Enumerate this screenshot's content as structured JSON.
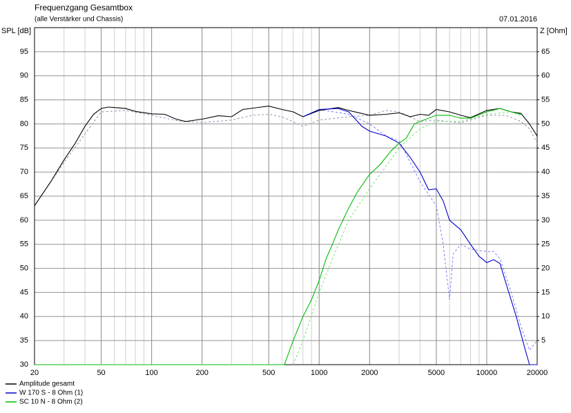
{
  "chart_data": {
    "type": "line",
    "title": "Frequenzgang Gesamtbox",
    "subtitle": "(alle Verstärker und Chassis)",
    "date": "07.01.2016",
    "ylabel": "SPL [dB]",
    "y2label": "Z [Ohm]",
    "xscale": "log",
    "xlim": [
      20,
      20000
    ],
    "xticks": [
      20,
      50,
      100,
      200,
      500,
      1000,
      2000,
      5000,
      10000,
      20000
    ],
    "ylim": [
      30,
      100
    ],
    "yticks": [
      30,
      35,
      40,
      45,
      50,
      55,
      60,
      65,
      70,
      75,
      80,
      85,
      90,
      95
    ],
    "y2lim": [
      0,
      70
    ],
    "y2ticks": [
      5,
      10,
      15,
      20,
      25,
      30,
      35,
      40,
      45,
      50,
      55,
      60,
      65
    ],
    "grid": true,
    "legend": "bottom-left",
    "series": [
      {
        "color": "#9a9ab8",
        "dash": true,
        "x": [
          20,
          30,
          50,
          70,
          100,
          150,
          200,
          300,
          400,
          500,
          600,
          800,
          1000,
          1500,
          2000,
          2500,
          3000,
          4000,
          5000,
          7000,
          10000,
          13000,
          16000,
          18000,
          20000
        ],
        "values": [
          63,
          72,
          82.5,
          82.8,
          81.8,
          80.5,
          80.3,
          80.8,
          81.8,
          82,
          81.5,
          79.5,
          80.8,
          81.5,
          81.8,
          82.8,
          82.5,
          80.5,
          80.8,
          80.2,
          81.8,
          81.8,
          80.5,
          79,
          76
        ]
      },
      {
        "color": "#8080ff",
        "dash": true,
        "x": [
          1000,
          1500,
          2000,
          2500,
          3000,
          3500,
          4000,
          5000,
          5500,
          6000,
          6300,
          7000,
          8000,
          10000,
          11000,
          12000,
          14000,
          16000,
          18000,
          20000
        ],
        "values": [
          83,
          82,
          80,
          77.5,
          76.5,
          72,
          68,
          63,
          55,
          43.5,
          53,
          55,
          54,
          53.5,
          53.5,
          52,
          45,
          38,
          33,
          35
        ]
      },
      {
        "color": "#80e080",
        "dash": true,
        "x": [
          700,
          800,
          1000,
          1200,
          1500,
          2000,
          3000,
          4000,
          5000,
          7000,
          10000,
          14000,
          16000
        ],
        "values": [
          30,
          35,
          45,
          52,
          60,
          66.5,
          75,
          79,
          80.5,
          80.5,
          82,
          82.5,
          81.8
        ]
      },
      {
        "name": "Amplitude gesamt",
        "color": "#000000",
        "x": [
          20,
          25,
          30,
          35,
          40,
          45,
          50,
          55,
          60,
          70,
          80,
          100,
          120,
          140,
          160,
          200,
          250,
          300,
          350,
          450,
          500,
          600,
          700,
          800,
          1000,
          1300,
          1500,
          2000,
          2500,
          3000,
          3500,
          4000,
          4500,
          5000,
          6000,
          7000,
          8000,
          10000,
          12000,
          14000,
          16000,
          18000,
          20000
        ],
        "values": [
          63,
          68,
          72.5,
          76,
          79.5,
          82,
          83.2,
          83.5,
          83.4,
          83.2,
          82.6,
          82.1,
          82,
          81,
          80.5,
          81,
          81.7,
          81.5,
          83,
          83.5,
          83.7,
          83,
          82.5,
          81.5,
          82.8,
          83.4,
          82.8,
          81.8,
          82,
          82.3,
          81.5,
          82,
          81.8,
          83,
          82.5,
          81.8,
          81.3,
          82.8,
          83.2,
          82.5,
          82.2,
          80,
          77.5
        ]
      },
      {
        "name": "W 170 S - 8 Ohm (1)",
        "color": "#0000cc",
        "x": [
          800,
          1000,
          1300,
          1500,
          1800,
          2000,
          2500,
          3000,
          3500,
          4000,
          4500,
          5000,
          5500,
          6000,
          7000,
          8000,
          9000,
          10000,
          11000,
          12000,
          13000,
          15000,
          17000,
          18000,
          20000
        ],
        "values": [
          81.5,
          83,
          83.2,
          82.5,
          79.5,
          78.5,
          77.5,
          76,
          73,
          70,
          66.3,
          66.5,
          64,
          60,
          58,
          55,
          52.5,
          51.2,
          51.8,
          51,
          47,
          40,
          33,
          30,
          30
        ]
      },
      {
        "name": "SC 10 N - 8 Ohm (2)",
        "color": "#00bb00",
        "x": [
          20,
          620,
          700,
          800,
          900,
          1000,
          1100,
          1200,
          1300,
          1500,
          1700,
          2000,
          2300,
          2700,
          3000,
          3300,
          3700,
          4000,
          5000,
          6000,
          7000,
          8000,
          10000,
          12000,
          14000,
          16000
        ],
        "values": [
          30,
          30,
          35,
          40,
          43.5,
          47.5,
          52,
          55,
          58,
          62.5,
          66,
          69.5,
          71.5,
          74.5,
          76,
          77,
          80,
          80.5,
          81.8,
          81.8,
          81.2,
          81.2,
          82.5,
          83.2,
          82.5,
          82
        ]
      }
    ]
  }
}
